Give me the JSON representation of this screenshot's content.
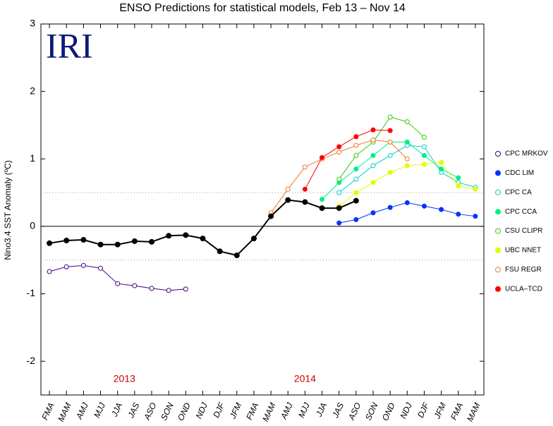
{
  "chart_data": {
    "type": "line",
    "title": "ENSO Predictions for statistical models, Feb 13 – Nov 14",
    "logo": "IRI",
    "ylabel": "Nino3.4 SST Anomaly (ºC)",
    "annotations": [
      {
        "text": "2013",
        "x": 4.4
      },
      {
        "text": "2014",
        "x": 15
      }
    ],
    "categories": [
      "FMA",
      "MAM",
      "AMJ",
      "MJJ",
      "JJA",
      "JAS",
      "ASO",
      "SON",
      "OND",
      "NDJ",
      "DJF",
      "JFM",
      "FMA",
      "MAM",
      "AMJ",
      "MJJ",
      "JJA",
      "JAS",
      "ASO",
      "SON",
      "OND",
      "NDJ",
      "DJF",
      "JFM",
      "FMA",
      "MAM"
    ],
    "ylim": [
      -2.5,
      3
    ],
    "yticks": [
      -2,
      -1,
      0,
      1,
      2,
      3
    ],
    "reference_lines": [
      0.5,
      -0.5
    ],
    "observed": {
      "color": "#000000",
      "values": [
        -0.25,
        -0.21,
        -0.2,
        -0.27,
        -0.27,
        -0.22,
        -0.23,
        -0.14,
        -0.13,
        -0.18,
        -0.37,
        -0.43,
        -0.18,
        0.15,
        0.39,
        0.36,
        0.27,
        0.27,
        0.38,
        null,
        null,
        null,
        null,
        null,
        null,
        null
      ]
    },
    "series": [
      {
        "name": "CPC MRKOV",
        "color": "#400080",
        "marker": "open",
        "values": [
          -0.67,
          -0.6,
          -0.58,
          -0.62,
          -0.85,
          -0.88,
          -0.92,
          -0.95,
          -0.93,
          null,
          null,
          null,
          null,
          null,
          null,
          null,
          null,
          null,
          null,
          null,
          null,
          null,
          null,
          null,
          null,
          null
        ]
      },
      {
        "name": "CDC LIM",
        "color": "#0033ff",
        "marker": "filled",
        "values": [
          null,
          null,
          null,
          null,
          null,
          null,
          null,
          null,
          null,
          null,
          null,
          null,
          null,
          null,
          null,
          null,
          null,
          0.05,
          0.1,
          0.2,
          0.28,
          0.35,
          0.3,
          0.25,
          0.18,
          0.15
        ]
      },
      {
        "name": "CPC CA",
        "color": "#00cccc",
        "marker": "open",
        "values": [
          null,
          null,
          null,
          null,
          null,
          null,
          null,
          null,
          null,
          null,
          null,
          null,
          null,
          null,
          null,
          null,
          null,
          0.5,
          0.7,
          0.9,
          1.05,
          1.2,
          1.18,
          0.8,
          0.65,
          0.58
        ]
      },
      {
        "name": "CPC CCA",
        "color": "#00ee88",
        "marker": "filled",
        "values": [
          null,
          null,
          null,
          null,
          null,
          null,
          null,
          null,
          null,
          null,
          null,
          null,
          null,
          null,
          null,
          null,
          0.4,
          0.65,
          0.85,
          1.05,
          1.25,
          1.25,
          1.05,
          0.85,
          0.72,
          null
        ]
      },
      {
        "name": "CSU CLIPR",
        "color": "#33cc00",
        "marker": "open",
        "values": [
          null,
          null,
          null,
          null,
          null,
          null,
          null,
          null,
          null,
          null,
          null,
          null,
          null,
          null,
          null,
          null,
          null,
          0.7,
          1.05,
          1.25,
          1.62,
          1.55,
          1.32,
          null,
          null,
          null
        ]
      },
      {
        "name": "UBC NNET",
        "color": "#ddff00",
        "marker": "filled",
        "values": [
          null,
          null,
          null,
          null,
          null,
          null,
          null,
          null,
          null,
          null,
          null,
          null,
          null,
          null,
          null,
          null,
          null,
          0.3,
          0.5,
          0.65,
          0.8,
          0.9,
          0.92,
          0.95,
          0.6,
          0.55
        ]
      },
      {
        "name": "FSU REGR",
        "color": "#ee7722",
        "marker": "open",
        "values": [
          null,
          null,
          null,
          null,
          null,
          null,
          null,
          null,
          null,
          null,
          null,
          null,
          null,
          0.2,
          0.55,
          0.88,
          1.0,
          1.1,
          1.2,
          1.28,
          1.25,
          1.0,
          null,
          null,
          null,
          null
        ]
      },
      {
        "name": "UCLA–TCD",
        "color": "#ff0000",
        "marker": "filled",
        "values": [
          null,
          null,
          null,
          null,
          null,
          null,
          null,
          null,
          null,
          null,
          null,
          null,
          null,
          null,
          null,
          0.55,
          1.02,
          1.18,
          1.33,
          1.43,
          1.42,
          null,
          null,
          null,
          null,
          null
        ]
      }
    ]
  }
}
